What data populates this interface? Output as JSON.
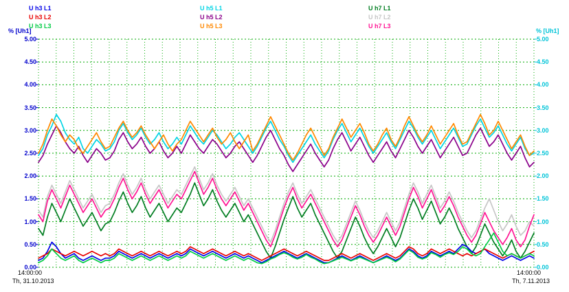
{
  "chart_data": {
    "type": "line",
    "title": "",
    "ylabel_left": "% [Uh1]",
    "ylabel_right": "% [Uh1]",
    "ylim": [
      0,
      5
    ],
    "yticks": [
      "5.00",
      "4.50",
      "4.00",
      "3.50",
      "3.00",
      "2.50",
      "2.00",
      "1.50",
      "1.00",
      "0.50",
      "0.00"
    ],
    "grid": {
      "on": true,
      "color": "#00aa00",
      "h_step": 0.5,
      "v_per_day": 4
    },
    "axis_colors": {
      "left": "#0000cc",
      "right": "#00c4d8",
      "x_labels": "#000000"
    },
    "x_axis": {
      "start_time": "14:00:00",
      "start_date": "Th, 31.10.2013",
      "end_time": "14:00:00",
      "end_date": "Th, 7.11.2013",
      "days": 7
    },
    "draw_order": [
      7,
      6,
      8,
      0,
      1,
      2,
      4,
      3,
      5
    ],
    "series": [
      {
        "name": "U h3 L1",
        "color": "#0000e8",
        "values": [
          0.15,
          0.2,
          0.35,
          0.55,
          0.45,
          0.3,
          0.2,
          0.25,
          0.3,
          0.2,
          0.15,
          0.2,
          0.25,
          0.2,
          0.15,
          0.2,
          0.2,
          0.25,
          0.35,
          0.3,
          0.25,
          0.2,
          0.25,
          0.3,
          0.25,
          0.2,
          0.25,
          0.3,
          0.25,
          0.2,
          0.25,
          0.3,
          0.25,
          0.3,
          0.4,
          0.35,
          0.3,
          0.25,
          0.3,
          0.35,
          0.3,
          0.25,
          0.2,
          0.25,
          0.3,
          0.25,
          0.2,
          0.25,
          0.2,
          0.15,
          0.1,
          0.15,
          0.2,
          0.25,
          0.3,
          0.35,
          0.3,
          0.25,
          0.2,
          0.25,
          0.3,
          0.25,
          0.2,
          0.15,
          0.1,
          0.1,
          0.15,
          0.2,
          0.25,
          0.2,
          0.15,
          0.2,
          0.25,
          0.2,
          0.15,
          0.1,
          0.15,
          0.2,
          0.25,
          0.2,
          0.15,
          0.2,
          0.3,
          0.4,
          0.35,
          0.25,
          0.2,
          0.25,
          0.35,
          0.3,
          0.25,
          0.3,
          0.35,
          0.3,
          0.4,
          0.5,
          0.45,
          0.35,
          0.3,
          0.35,
          0.4,
          0.3,
          0.25,
          0.2,
          0.15,
          0.2,
          0.25,
          0.2,
          0.15,
          0.2,
          0.25,
          0.2
        ]
      },
      {
        "name": "U h3 L2",
        "color": "#e80000",
        "values": [
          0.2,
          0.25,
          0.3,
          0.4,
          0.35,
          0.3,
          0.25,
          0.3,
          0.35,
          0.3,
          0.25,
          0.3,
          0.35,
          0.3,
          0.25,
          0.3,
          0.25,
          0.3,
          0.4,
          0.35,
          0.3,
          0.25,
          0.3,
          0.35,
          0.3,
          0.25,
          0.3,
          0.35,
          0.3,
          0.25,
          0.3,
          0.35,
          0.3,
          0.35,
          0.45,
          0.4,
          0.35,
          0.3,
          0.35,
          0.4,
          0.35,
          0.3,
          0.25,
          0.3,
          0.35,
          0.3,
          0.25,
          0.3,
          0.25,
          0.2,
          0.15,
          0.2,
          0.25,
          0.3,
          0.35,
          0.4,
          0.35,
          0.3,
          0.25,
          0.3,
          0.35,
          0.3,
          0.25,
          0.2,
          0.15,
          0.15,
          0.2,
          0.25,
          0.3,
          0.25,
          0.2,
          0.25,
          0.3,
          0.25,
          0.2,
          0.15,
          0.2,
          0.25,
          0.3,
          0.25,
          0.2,
          0.25,
          0.35,
          0.45,
          0.4,
          0.3,
          0.25,
          0.3,
          0.4,
          0.35,
          0.3,
          0.35,
          0.4,
          0.35,
          0.3,
          0.25,
          0.3,
          0.25,
          0.3,
          0.35,
          0.4,
          0.35,
          0.3,
          0.25,
          0.2,
          0.25,
          0.3,
          0.25,
          0.2,
          0.25,
          0.3,
          0.35
        ]
      },
      {
        "name": "U h3 L3",
        "color": "#00cc44",
        "values": [
          0.1,
          0.15,
          0.25,
          0.4,
          0.3,
          0.2,
          0.15,
          0.2,
          0.25,
          0.15,
          0.1,
          0.15,
          0.2,
          0.15,
          0.1,
          0.15,
          0.15,
          0.2,
          0.3,
          0.25,
          0.2,
          0.15,
          0.2,
          0.25,
          0.2,
          0.15,
          0.2,
          0.25,
          0.2,
          0.15,
          0.2,
          0.25,
          0.2,
          0.25,
          0.35,
          0.3,
          0.25,
          0.2,
          0.25,
          0.3,
          0.25,
          0.2,
          0.15,
          0.2,
          0.25,
          0.2,
          0.15,
          0.2,
          0.15,
          0.1,
          0.08,
          0.12,
          0.18,
          0.22,
          0.28,
          0.32,
          0.28,
          0.22,
          0.18,
          0.22,
          0.28,
          0.22,
          0.18,
          0.12,
          0.08,
          0.1,
          0.14,
          0.18,
          0.22,
          0.18,
          0.14,
          0.18,
          0.22,
          0.18,
          0.14,
          0.1,
          0.14,
          0.18,
          0.22,
          0.18,
          0.12,
          0.18,
          0.28,
          0.38,
          0.32,
          0.22,
          0.18,
          0.22,
          0.32,
          0.28,
          0.22,
          0.28,
          0.32,
          0.28,
          0.35,
          0.45,
          0.4,
          0.3,
          0.25,
          0.3,
          0.45,
          0.6,
          0.75,
          0.55,
          0.35,
          0.25,
          0.3,
          0.25,
          0.2,
          0.25,
          0.3,
          0.25
        ]
      },
      {
        "name": "U h5 L1",
        "color": "#00d4e4",
        "values": [
          2.45,
          2.6,
          2.9,
          3.1,
          3.35,
          3.2,
          2.95,
          2.8,
          2.7,
          2.85,
          2.6,
          2.5,
          2.65,
          2.8,
          2.7,
          2.55,
          2.6,
          2.75,
          3.0,
          3.15,
          2.95,
          2.8,
          2.9,
          3.05,
          2.85,
          2.7,
          2.8,
          2.95,
          2.75,
          2.6,
          2.7,
          2.85,
          2.7,
          2.9,
          3.1,
          2.95,
          2.8,
          2.7,
          2.85,
          3.0,
          2.9,
          2.75,
          2.6,
          2.7,
          2.85,
          2.95,
          2.8,
          2.65,
          2.5,
          2.65,
          2.85,
          3.05,
          3.2,
          3.0,
          2.8,
          2.65,
          2.45,
          2.3,
          2.45,
          2.6,
          2.75,
          2.9,
          2.7,
          2.55,
          2.4,
          2.55,
          2.8,
          3.0,
          3.15,
          2.95,
          2.75,
          2.9,
          3.05,
          2.85,
          2.65,
          2.5,
          2.65,
          2.8,
          2.95,
          2.75,
          2.6,
          2.8,
          3.0,
          3.2,
          3.05,
          2.85,
          2.7,
          2.85,
          3.0,
          2.8,
          2.6,
          2.75,
          2.9,
          3.05,
          2.85,
          2.65,
          2.7,
          2.9,
          3.1,
          3.25,
          3.05,
          2.85,
          2.95,
          3.1,
          2.9,
          2.7,
          2.55,
          2.7,
          2.85,
          2.6,
          2.45,
          2.5
        ]
      },
      {
        "name": "U h5 L2",
        "color": "#8a008a",
        "values": [
          2.3,
          2.45,
          2.7,
          2.9,
          3.1,
          2.95,
          2.75,
          2.6,
          2.5,
          2.65,
          2.45,
          2.3,
          2.45,
          2.6,
          2.5,
          2.35,
          2.4,
          2.55,
          2.8,
          2.95,
          2.75,
          2.6,
          2.7,
          2.85,
          2.65,
          2.5,
          2.6,
          2.75,
          2.55,
          2.4,
          2.5,
          2.65,
          2.5,
          2.7,
          2.9,
          2.75,
          2.6,
          2.5,
          2.65,
          2.8,
          2.7,
          2.55,
          2.4,
          2.5,
          2.65,
          2.75,
          2.6,
          2.45,
          2.3,
          2.45,
          2.65,
          2.85,
          3.0,
          2.8,
          2.6,
          2.45,
          2.25,
          2.1,
          2.25,
          2.4,
          2.55,
          2.7,
          2.5,
          2.35,
          2.2,
          2.35,
          2.6,
          2.8,
          2.95,
          2.75,
          2.55,
          2.7,
          2.85,
          2.65,
          2.45,
          2.3,
          2.45,
          2.6,
          2.75,
          2.55,
          2.4,
          2.6,
          2.8,
          3.0,
          2.85,
          2.65,
          2.5,
          2.65,
          2.8,
          2.6,
          2.4,
          2.55,
          2.7,
          2.85,
          2.65,
          2.45,
          2.5,
          2.7,
          2.9,
          3.05,
          2.85,
          2.65,
          2.75,
          2.9,
          2.7,
          2.5,
          2.35,
          2.5,
          2.65,
          2.4,
          2.2,
          2.3
        ]
      },
      {
        "name": "U h5 L3",
        "color": "#ff8800",
        "values": [
          2.5,
          2.7,
          3.0,
          3.25,
          3.1,
          2.9,
          2.75,
          2.9,
          2.8,
          2.6,
          2.5,
          2.65,
          2.8,
          2.95,
          2.75,
          2.6,
          2.65,
          2.85,
          3.05,
          3.2,
          3.0,
          2.85,
          2.95,
          3.1,
          2.9,
          2.75,
          2.6,
          2.75,
          2.9,
          2.7,
          2.55,
          2.7,
          2.8,
          3.0,
          3.2,
          3.05,
          2.9,
          2.75,
          2.9,
          3.05,
          2.85,
          2.7,
          2.8,
          2.95,
          2.75,
          2.6,
          2.75,
          2.9,
          2.55,
          2.7,
          2.9,
          3.1,
          3.3,
          3.1,
          2.9,
          2.7,
          2.5,
          2.35,
          2.5,
          2.7,
          2.9,
          3.05,
          2.85,
          2.65,
          2.45,
          2.6,
          2.85,
          3.05,
          3.25,
          3.05,
          2.85,
          3.0,
          3.15,
          2.95,
          2.7,
          2.55,
          2.7,
          2.9,
          3.05,
          2.8,
          2.65,
          2.85,
          3.1,
          3.3,
          3.1,
          2.9,
          2.75,
          2.9,
          3.1,
          2.9,
          2.7,
          2.85,
          3.0,
          3.15,
          2.9,
          2.7,
          2.75,
          2.95,
          3.15,
          3.35,
          3.15,
          2.9,
          3.0,
          3.2,
          3.0,
          2.8,
          2.6,
          2.75,
          2.9,
          2.65,
          2.45,
          2.55
        ]
      },
      {
        "name": "U h7 L1",
        "color": "#007d20",
        "values": [
          0.85,
          0.7,
          1.1,
          1.4,
          1.2,
          1.0,
          1.25,
          1.5,
          1.3,
          1.1,
          0.9,
          1.05,
          1.2,
          1.0,
          0.8,
          0.95,
          1.0,
          1.2,
          1.45,
          1.65,
          1.4,
          1.2,
          1.35,
          1.55,
          1.3,
          1.1,
          1.25,
          1.4,
          1.2,
          1.0,
          1.15,
          1.3,
          1.2,
          1.4,
          1.6,
          1.85,
          1.6,
          1.35,
          1.5,
          1.7,
          1.45,
          1.25,
          1.1,
          1.25,
          1.4,
          1.2,
          1.0,
          1.15,
          0.95,
          0.75,
          0.55,
          0.35,
          0.2,
          0.45,
          0.75,
          1.05,
          1.3,
          1.55,
          1.3,
          1.1,
          1.25,
          1.4,
          1.15,
          0.95,
          0.75,
          0.55,
          0.35,
          0.2,
          0.35,
          0.6,
          0.85,
          1.1,
          0.9,
          0.65,
          0.45,
          0.3,
          0.45,
          0.65,
          0.85,
          0.65,
          0.45,
          0.65,
          0.95,
          1.25,
          1.5,
          1.3,
          1.05,
          1.25,
          1.45,
          1.2,
          0.95,
          1.1,
          1.3,
          1.1,
          0.85,
          0.65,
          0.45,
          0.3,
          0.45,
          0.7,
          0.95,
          0.75,
          0.55,
          0.4,
          0.25,
          0.4,
          0.6,
          0.35,
          0.2,
          0.35,
          0.55,
          0.75
        ]
      },
      {
        "name": "U h7 L2",
        "color": "#c6c6c6",
        "values": [
          1.25,
          1.1,
          1.55,
          1.8,
          1.6,
          1.4,
          1.65,
          1.9,
          1.7,
          1.5,
          1.3,
          1.45,
          1.6,
          1.4,
          1.2,
          1.35,
          1.4,
          1.6,
          1.85,
          2.05,
          1.8,
          1.6,
          1.75,
          1.95,
          1.7,
          1.5,
          1.65,
          1.8,
          1.6,
          1.4,
          1.55,
          1.7,
          1.6,
          1.8,
          2.0,
          2.2,
          1.95,
          1.7,
          1.85,
          2.05,
          1.8,
          1.6,
          1.45,
          1.6,
          1.75,
          1.55,
          1.35,
          1.5,
          1.3,
          1.1,
          0.9,
          0.7,
          0.55,
          0.8,
          1.1,
          1.4,
          1.65,
          1.85,
          1.6,
          1.4,
          1.55,
          1.7,
          1.5,
          1.3,
          1.1,
          0.9,
          0.7,
          0.55,
          0.7,
          0.95,
          1.2,
          1.45,
          1.25,
          1.0,
          0.8,
          0.65,
          0.8,
          1.0,
          1.2,
          1.0,
          0.8,
          1.0,
          1.3,
          1.6,
          1.85,
          1.65,
          1.4,
          1.6,
          1.8,
          1.55,
          1.3,
          1.45,
          1.65,
          1.45,
          1.2,
          1.0,
          0.8,
          0.65,
          0.8,
          1.05,
          1.3,
          1.5,
          1.25,
          1.0,
          0.8,
          0.95,
          1.15,
          0.9,
          0.7,
          0.8,
          1.0,
          0.9
        ]
      },
      {
        "name": "U h7 L3",
        "color": "#ff1493",
        "values": [
          1.15,
          1.0,
          1.45,
          1.7,
          1.5,
          1.3,
          1.55,
          1.8,
          1.6,
          1.4,
          1.2,
          1.35,
          1.5,
          1.3,
          1.1,
          1.25,
          1.3,
          1.5,
          1.75,
          1.95,
          1.7,
          1.5,
          1.65,
          1.85,
          1.6,
          1.4,
          1.55,
          1.7,
          1.5,
          1.3,
          1.45,
          1.6,
          1.5,
          1.7,
          1.9,
          2.1,
          1.85,
          1.6,
          1.75,
          1.95,
          1.7,
          1.5,
          1.35,
          1.5,
          1.65,
          1.45,
          1.25,
          1.4,
          1.2,
          1.0,
          0.8,
          0.6,
          0.45,
          0.7,
          1.0,
          1.3,
          1.55,
          1.75,
          1.5,
          1.3,
          1.45,
          1.6,
          1.4,
          1.2,
          1.0,
          0.8,
          0.6,
          0.45,
          0.6,
          0.85,
          1.1,
          1.35,
          1.15,
          0.9,
          0.7,
          0.55,
          0.7,
          0.9,
          1.1,
          0.9,
          0.7,
          0.9,
          1.2,
          1.5,
          1.75,
          1.55,
          1.3,
          1.5,
          1.7,
          1.45,
          1.2,
          1.35,
          1.55,
          1.35,
          1.1,
          0.9,
          0.7,
          0.55,
          0.7,
          0.95,
          1.2,
          1.0,
          0.8,
          0.65,
          0.5,
          0.65,
          0.85,
          0.6,
          0.45,
          0.6,
          0.9,
          1.15
        ]
      }
    ]
  }
}
